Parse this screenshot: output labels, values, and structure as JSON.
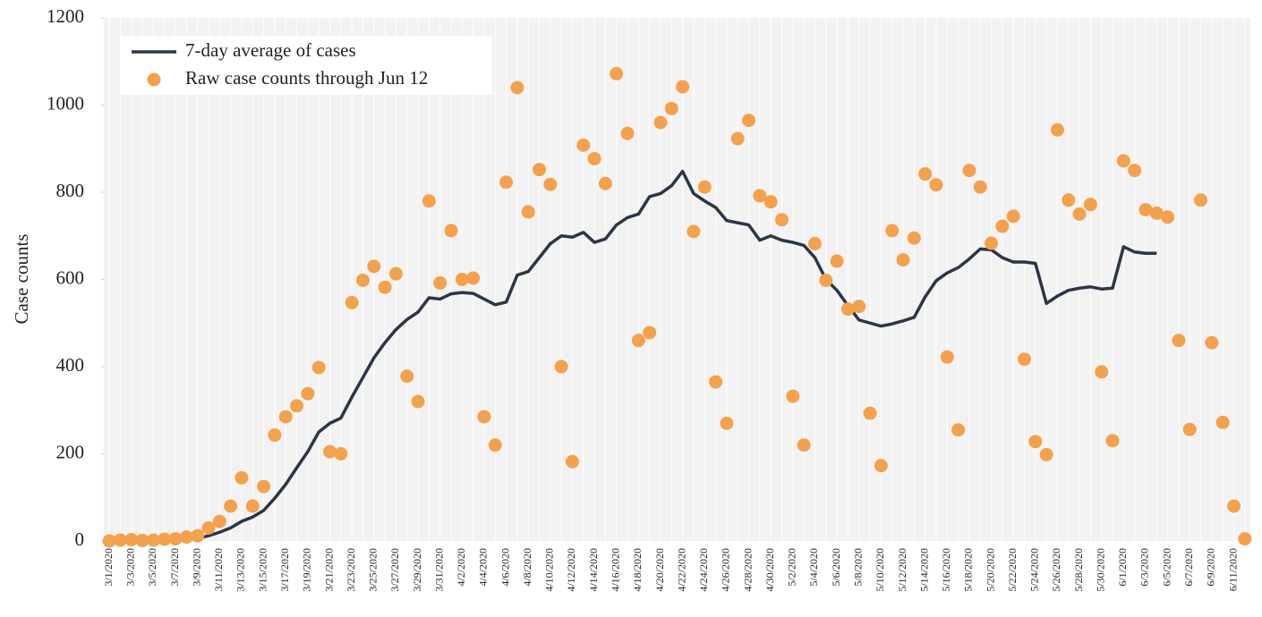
{
  "chart_data": {
    "type": "line",
    "y_label": "Case counts",
    "categories": [
      "3/1/2020",
      null,
      "3/3/2020",
      null,
      "3/5/2020",
      null,
      "3/7/2020",
      null,
      "3/9/2020",
      null,
      "3/11/2020",
      null,
      "3/13/2020",
      null,
      "3/15/2020",
      null,
      "3/17/2020",
      null,
      "3/19/2020",
      null,
      "3/21/2020",
      null,
      "3/23/2020",
      null,
      "3/25/2020",
      null,
      "3/27/2020",
      null,
      "3/29/2020",
      null,
      "3/31/2020",
      null,
      "4/2/2020",
      null,
      "4/4/2020",
      null,
      "4/6/2020",
      null,
      "4/8/2020",
      null,
      "4/10/2020",
      null,
      "4/12/2020",
      null,
      "4/14/2020",
      null,
      "4/16/2020",
      null,
      "4/18/2020",
      null,
      "4/20/2020",
      null,
      "4/22/2020",
      null,
      "4/24/2020",
      null,
      "4/26/2020",
      null,
      "4/28/2020",
      null,
      "4/30/2020",
      null,
      "5/2/2020",
      null,
      "5/4/2020",
      null,
      "5/6/2020",
      null,
      "5/8/2020",
      null,
      "5/10/2020",
      null,
      "5/12/2020",
      null,
      "5/14/2020",
      null,
      "5/16/2020",
      null,
      "5/18/2020",
      null,
      "5/20/2020",
      null,
      "5/22/2020",
      null,
      "5/24/2020",
      null,
      "5/26/2020",
      null,
      "5/28/2020",
      null,
      "5/30/2020",
      null,
      "6/1/2020",
      null,
      "6/3/2020",
      null,
      "6/5/2020",
      null,
      "6/7/2020",
      null,
      "6/9/2020",
      null,
      "6/11/2020",
      null
    ],
    "series": [
      {
        "name": "7-day average of cases",
        "type": "line",
        "color": "#2b3647",
        "values": [
          null,
          null,
          null,
          null,
          null,
          null,
          null,
          3,
          6,
          12,
          20,
          30,
          45,
          55,
          70,
          98,
          130,
          168,
          205,
          250,
          270,
          282,
          330,
          375,
          420,
          455,
          485,
          508,
          525,
          558,
          555,
          567,
          570,
          568,
          555,
          542,
          548,
          610,
          618,
          650,
          682,
          700,
          697,
          708,
          685,
          693,
          725,
          742,
          750,
          790,
          797,
          815,
          848,
          797,
          780,
          765,
          735,
          730,
          725,
          690,
          700,
          690,
          685,
          678,
          650,
          600,
          575,
          540,
          507,
          500,
          493,
          498,
          505,
          513,
          560,
          597,
          615,
          627,
          647,
          670,
          668,
          650,
          640,
          640,
          637,
          545,
          562,
          575,
          580,
          583,
          578,
          580,
          675,
          663,
          660,
          660,
          null,
          null,
          null,
          null,
          null,
          null,
          null,
          null
        ]
      },
      {
        "name": "Raw case counts through Jun 12",
        "type": "scatter",
        "color": "#f4a14d",
        "values": [
          0,
          2,
          3,
          1,
          2,
          4,
          5,
          9,
          12,
          30,
          45,
          80,
          145,
          80,
          125,
          243,
          285,
          310,
          338,
          398,
          205,
          200,
          547,
          598,
          630,
          582,
          613,
          378,
          320,
          780,
          592,
          712,
          600,
          603,
          285,
          220,
          823,
          1040,
          755,
          852,
          818,
          400,
          182,
          908,
          877,
          820,
          1072,
          935,
          460,
          478,
          960,
          992,
          1042,
          710,
          812,
          365,
          270,
          923,
          965,
          792,
          778,
          737,
          332,
          220,
          682,
          598,
          642,
          532,
          538,
          293,
          173,
          712,
          645,
          695,
          842,
          817,
          422,
          255,
          850,
          812,
          683,
          722,
          745,
          417,
          228,
          198,
          943,
          782,
          750,
          772,
          388,
          230,
          872,
          850,
          760,
          752,
          743,
          460,
          256,
          782,
          455,
          272,
          80,
          5
        ]
      }
    ],
    "ylim": [
      0,
      1200
    ],
    "yticks": [
      0,
      200,
      400,
      600,
      800,
      1000,
      1200
    ],
    "grid": true,
    "legend": "upper-left"
  }
}
